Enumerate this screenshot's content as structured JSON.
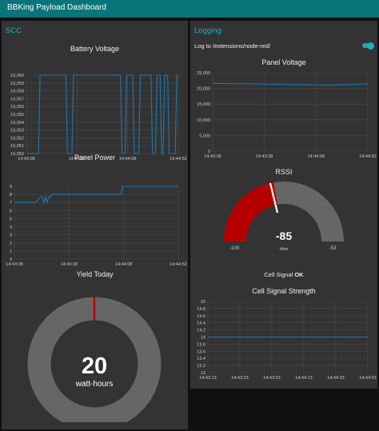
{
  "app": {
    "title": "BBKing Payload Dashboard"
  },
  "colors": {
    "header": "#097479",
    "accent": "#1bb3c0",
    "line": "#1f77b4",
    "gauge_fill": "#b50000",
    "gauge_track": "#666666",
    "donut_track": "#666666",
    "donut_marker": "#b50000"
  },
  "scc": {
    "title": "SCC",
    "battery_voltage": {
      "title": "Battery Voltage",
      "yticks": [
        "16,060",
        "16,059",
        "16,058",
        "16,057",
        "16,056",
        "16,055",
        "16,054",
        "16,053",
        "16,052",
        "16,051",
        "16,050"
      ],
      "xticks": [
        "14:43:08",
        "14:43:38",
        "14:44:08",
        "14:44:52"
      ]
    },
    "panel_power": {
      "title": "Panel Power",
      "yticks": [
        "9",
        "8",
        "7",
        "6",
        "5",
        "4",
        "3",
        "2",
        "1",
        "0"
      ],
      "xticks": [
        "14:43:08",
        "14:43:38",
        "14:44:08",
        "14:44:52"
      ]
    },
    "yield_today": {
      "title": "Yield Today",
      "value": "20",
      "units": "watt-hours"
    }
  },
  "logging": {
    "title": "Logging",
    "log_toggle": {
      "label": "Log to /extensions/node-red/",
      "on": true
    },
    "panel_voltage": {
      "title": "Panel Voltage",
      "yticks": [
        "25,000",
        "20,000",
        "15,000",
        "10,000",
        "5,000",
        "0"
      ],
      "xticks": [
        "14:43:08",
        "14:43:38",
        "14:44:08",
        "14:44:52"
      ]
    },
    "rssi": {
      "title": "RSSI",
      "value": "-85",
      "units": "dbm",
      "min": "-109",
      "max": "-53",
      "status_label": "Cell Signal",
      "status_value": "OK"
    },
    "cell_signal_strength": {
      "title": "Cell Signal Strength",
      "yticks": [
        "15",
        "14.8",
        "14.6",
        "14.4",
        "14.2",
        "14",
        "13.8",
        "13.6",
        "13.4",
        "13.2",
        "13"
      ],
      "xticks": [
        "14:43:13",
        "14:43:33",
        "14:43:53",
        "14:44:13",
        "14:44:33",
        "14:44:53"
      ]
    }
  },
  "chart_data": [
    {
      "type": "line",
      "title": "Battery Voltage",
      "ylim": [
        16050,
        16060
      ],
      "x_range": [
        "14:43:08",
        "14:44:52"
      ],
      "series": [
        {
          "x_frac": [
            0.0,
            0.08,
            0.09,
            0.26,
            0.27,
            0.3,
            0.31,
            0.62,
            0.63,
            0.65,
            0.66,
            0.7,
            0.71,
            0.74,
            0.75,
            0.82,
            0.83,
            0.85,
            0.86,
            0.88,
            0.89,
            0.9,
            0.91,
            0.93,
            0.94,
            0.98,
            0.99,
            1.0
          ],
          "y": [
            16050,
            16050,
            16060,
            16060,
            16050,
            16050,
            16060,
            16060,
            16050,
            16050,
            16060,
            16060,
            16050,
            16050,
            16060,
            16060,
            16050,
            16050,
            16060,
            16060,
            16050,
            16050,
            16060,
            16060,
            16050,
            16050,
            16060,
            16060
          ]
        }
      ]
    },
    {
      "type": "line",
      "title": "Panel Power",
      "ylim": [
        0,
        9
      ],
      "x_range": [
        "14:43:08",
        "14:44:52"
      ],
      "series": [
        {
          "x_frac": [
            0.0,
            0.13,
            0.16,
            0.17,
            0.18,
            0.19,
            0.2,
            0.21,
            0.22,
            0.23,
            0.65,
            0.66,
            0.69,
            1.0
          ],
          "y": [
            7.0,
            7.0,
            7.7,
            7.7,
            7.0,
            7.7,
            7.0,
            7.7,
            7.7,
            8.0,
            8.0,
            9.0,
            9.0,
            9.0
          ]
        }
      ]
    },
    {
      "type": "line",
      "title": "Panel Voltage",
      "ylim": [
        0,
        25000
      ],
      "x_range": [
        "14:43:08",
        "14:44:52"
      ],
      "series": [
        {
          "x_frac": [
            0.0,
            0.3,
            0.6,
            0.75,
            1.0
          ],
          "y": [
            21600,
            21400,
            21200,
            21100,
            21400
          ]
        }
      ]
    },
    {
      "type": "line",
      "title": "Cell Signal Strength",
      "ylim": [
        13,
        15
      ],
      "x_range": [
        "14:43:13",
        "14:44:53"
      ],
      "series": [
        {
          "x_frac": [
            0.0,
            1.0
          ],
          "y": [
            14,
            14
          ]
        }
      ]
    }
  ]
}
